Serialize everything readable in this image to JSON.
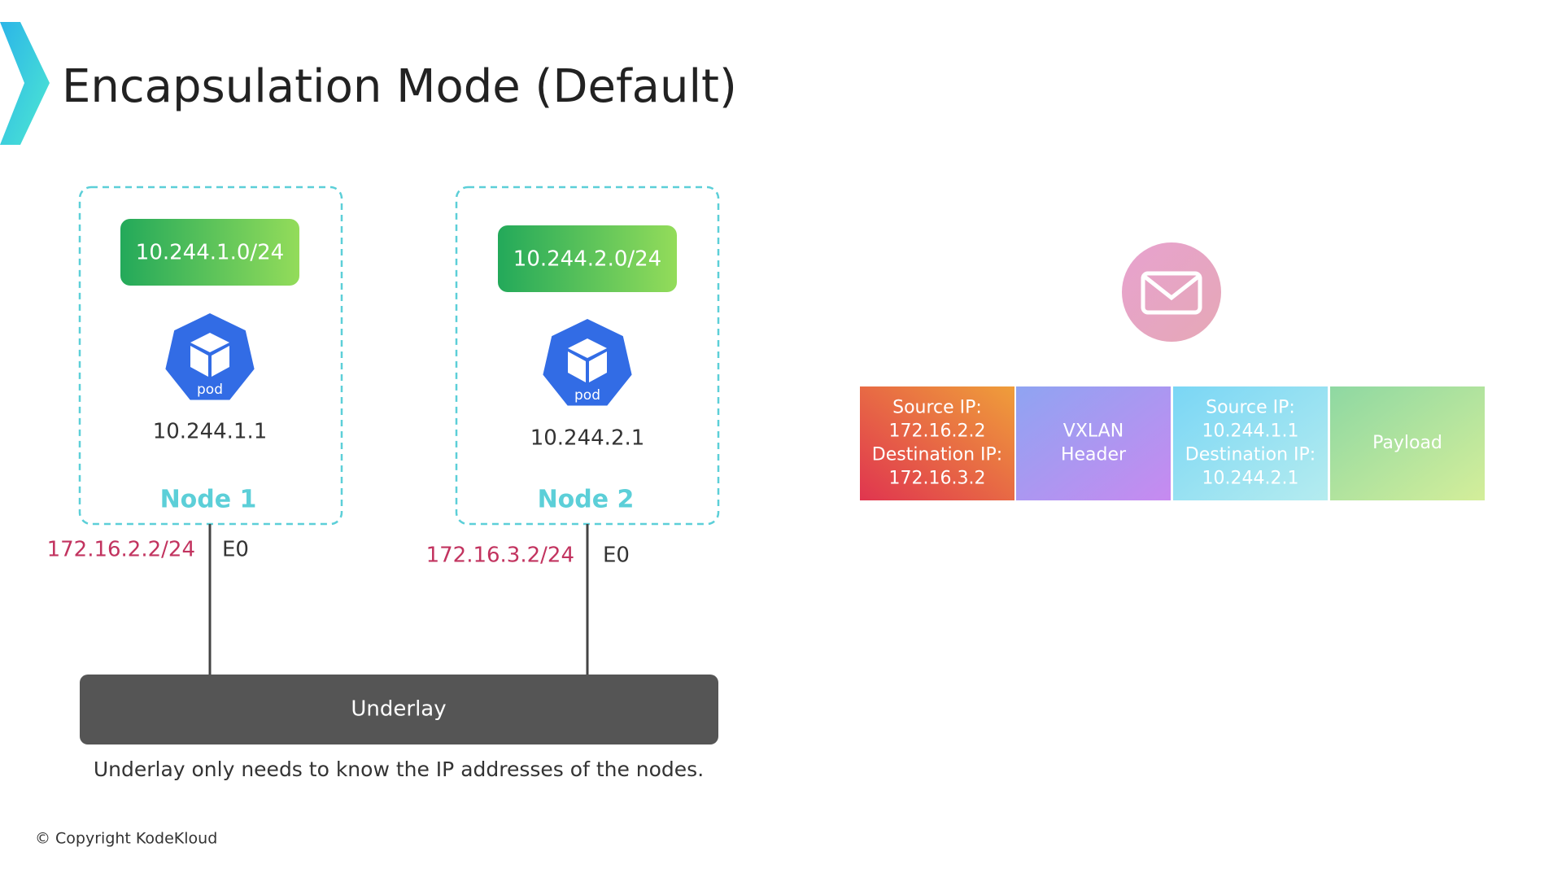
{
  "header": {
    "title": "Encapsulation Mode (Default)"
  },
  "nodes": [
    {
      "subnet": "10.244.1.0/24",
      "pod": "pod",
      "pod_ip": "10.244.1.1",
      "name": "Node 1",
      "interface_ip": "172.16.2.2/24",
      "interface": "E0"
    },
    {
      "subnet": "10.244.2.0/24",
      "pod": "pod",
      "pod_ip": "10.244.2.1",
      "name": "Node 2",
      "interface_ip": "172.16.3.2/24",
      "interface": "E0"
    }
  ],
  "underlay": {
    "label": "Underlay",
    "caption": "Underlay only needs to know the IP addresses of the nodes."
  },
  "packet": [
    {
      "lines": [
        "Source IP:",
        "172.16.2.2",
        "Destination IP:",
        "172.16.3.2"
      ]
    },
    {
      "lines": [
        "VXLAN",
        "Header"
      ]
    },
    {
      "lines": [
        "Source IP:",
        "10.244.1.1",
        "Destination IP:",
        "10.244.2.1"
      ]
    },
    {
      "lines": [
        "Payload"
      ]
    }
  ],
  "footer": {
    "copyright": "© Copyright KodeKloud"
  }
}
